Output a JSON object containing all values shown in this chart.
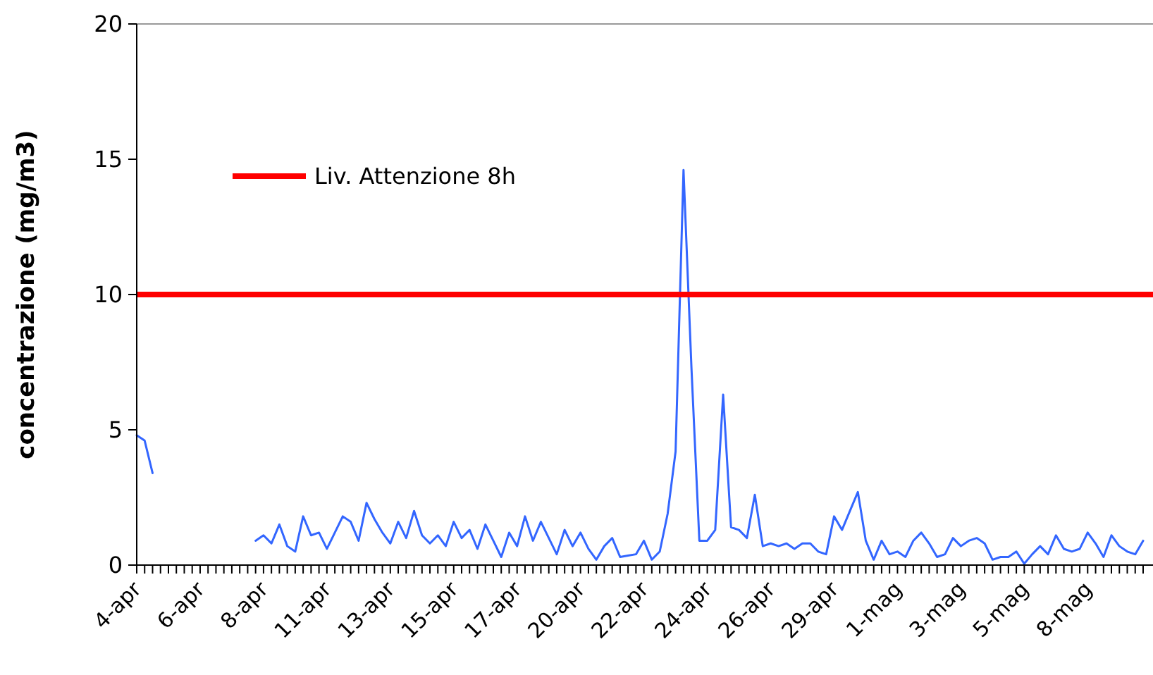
{
  "chart_data": {
    "type": "line",
    "ylabel": "concentrazione (mg/m3)",
    "categories": [
      "4-apr",
      null,
      null,
      null,
      null,
      null,
      null,
      null,
      "6-apr",
      null,
      null,
      null,
      null,
      null,
      null,
      null,
      "8-apr",
      null,
      null,
      null,
      null,
      null,
      null,
      null,
      "11-apr",
      null,
      null,
      null,
      null,
      null,
      null,
      null,
      "13-apr",
      null,
      null,
      null,
      null,
      null,
      null,
      null,
      "15-apr",
      null,
      null,
      null,
      null,
      null,
      null,
      null,
      "17-apr",
      null,
      null,
      null,
      null,
      null,
      null,
      null,
      "20-apr",
      null,
      null,
      null,
      null,
      null,
      null,
      null,
      "22-apr",
      null,
      null,
      null,
      null,
      null,
      null,
      null,
      "24-apr",
      null,
      null,
      null,
      null,
      null,
      null,
      null,
      "26-apr",
      null,
      null,
      null,
      null,
      null,
      null,
      null,
      "29-apr",
      null,
      null,
      null,
      null,
      null,
      null,
      null,
      "1-mag",
      null,
      null,
      null,
      null,
      null,
      null,
      null,
      "3-mag",
      null,
      null,
      null,
      null,
      null,
      null,
      null,
      "5-mag",
      null,
      null,
      null,
      null,
      null,
      null,
      null,
      "8-mag",
      null,
      null,
      null,
      null,
      null,
      null,
      null
    ],
    "series": [
      {
        "color": "#3366ff",
        "values": [
          4.8,
          4.6,
          3.4,
          null,
          null,
          null,
          null,
          null,
          null,
          null,
          null,
          null,
          null,
          null,
          null,
          0.9,
          1.1,
          0.8,
          1.5,
          0.7,
          0.5,
          1.8,
          1.1,
          1.2,
          0.6,
          1.2,
          1.8,
          1.6,
          0.9,
          2.3,
          1.7,
          1.2,
          0.8,
          1.6,
          1.0,
          2.0,
          1.1,
          0.8,
          1.1,
          0.7,
          1.6,
          1.0,
          1.3,
          0.6,
          1.5,
          0.9,
          0.3,
          1.2,
          0.7,
          1.8,
          0.9,
          1.6,
          1.0,
          0.4,
          1.3,
          0.7,
          1.2,
          0.6,
          0.2,
          0.7,
          1.0,
          0.3,
          0.35,
          0.4,
          0.9,
          0.2,
          0.5,
          1.9,
          4.2,
          14.6,
          7.3,
          0.9,
          0.9,
          1.3,
          6.3,
          1.4,
          1.3,
          1.0,
          2.6,
          0.7,
          0.8,
          0.7,
          0.8,
          0.6,
          0.8,
          0.8,
          0.5,
          0.4,
          1.8,
          1.3,
          2.0,
          2.7,
          0.9,
          0.2,
          0.9,
          0.4,
          0.5,
          0.3,
          0.9,
          1.2,
          0.8,
          0.3,
          0.4,
          1.0,
          0.7,
          0.9,
          1.0,
          0.8,
          0.2,
          0.3,
          0.3,
          0.5,
          0.05,
          0.4,
          0.7,
          0.4,
          1.1,
          0.6,
          0.5,
          0.6,
          1.2,
          0.8,
          0.3,
          1.1,
          0.7,
          0.5,
          0.4,
          0.9
        ]
      }
    ],
    "ylim": [
      0,
      20
    ],
    "yticks": [
      0,
      5,
      10,
      15,
      20
    ],
    "ref_lines": [
      {
        "axis": "y",
        "value": 10,
        "label": "Liv. Attenzione 8h",
        "color": "#ff0000"
      }
    ],
    "legend": "top left",
    "line_style": "solid"
  }
}
